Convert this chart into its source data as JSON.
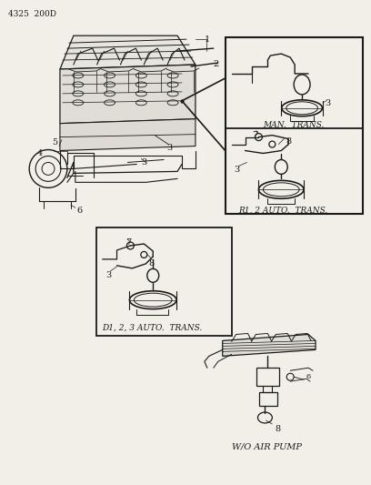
{
  "bg_color": "#f2efe8",
  "line_color": "#1a1a1a",
  "text_color": "#1a1a1a",
  "header": "4325  200D",
  "label_man": "MAN.  TRANS.",
  "label_r12": "R1, 2 AUTO.  TRANS.",
  "label_d123": "D1, 2, 3 AUTO.  TRANS.",
  "label_wo": "W/O AIR PUMP",
  "figsize": [
    4.08,
    5.33
  ],
  "dpi": 100
}
